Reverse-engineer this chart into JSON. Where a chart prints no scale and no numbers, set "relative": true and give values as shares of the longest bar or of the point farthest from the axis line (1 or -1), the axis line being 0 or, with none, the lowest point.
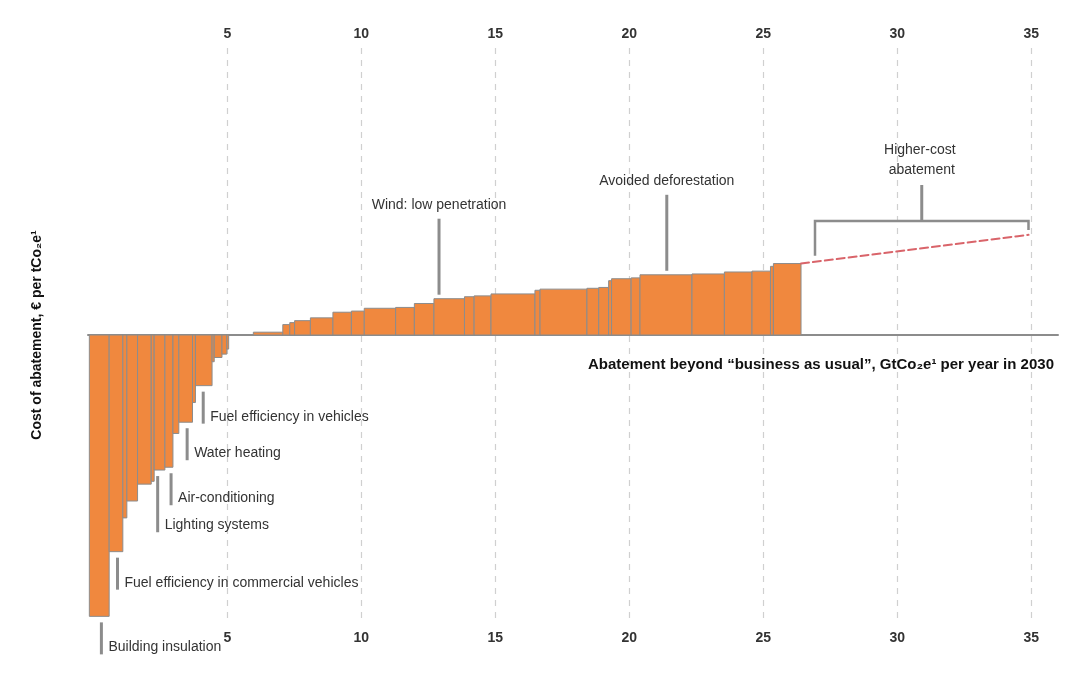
{
  "chart_data": {
    "type": "histogram",
    "relative": true,
    "ylabel": "Cost of abatement, € per tCo₂e¹",
    "xlabel": "Abatement beyond “business as usual”, GtCo₂e¹ per year in 2030",
    "bins": [
      -0.15,
      0.59,
      1.1,
      1.25,
      1.65,
      2.16,
      2.27,
      2.67,
      2.97,
      3.19,
      3.7,
      3.81,
      4.43,
      4.51,
      4.8,
      4.98,
      5.05,
      5.97,
      7.07,
      7.33,
      7.51,
      8.1,
      8.94,
      9.63,
      10.11,
      11.28,
      11.98,
      12.71,
      13.85,
      14.21,
      14.84,
      16.48,
      16.67,
      18.42,
      18.86,
      19.23,
      19.34,
      20.07,
      20.4,
      22.34,
      23.55,
      24.58,
      25.27,
      25.38,
      26.41
    ],
    "series": [
      {
        "color": "#f0883e",
        "values": [
          -1.0,
          -0.77,
          -0.65,
          -0.59,
          -0.53,
          -0.52,
          -0.48,
          -0.47,
          -0.35,
          -0.31,
          -0.24,
          -0.18,
          -0.095,
          -0.08,
          -0.068,
          -0.05,
          0,
          0.01,
          0.037,
          0.044,
          0.051,
          0.061,
          0.081,
          0.085,
          0.095,
          0.098,
          0.112,
          0.129,
          0.136,
          0.139,
          0.146,
          0.159,
          0.163,
          0.166,
          0.169,
          0.193,
          0.2,
          0.203,
          0.214,
          0.217,
          0.224,
          0.227,
          0.244,
          0.254
        ]
      },
      {
        "type": "line",
        "color": "#d9646a",
        "line_style": "dashed",
        "x": [
          26.41,
          34.9
        ],
        "values": [
          0.254,
          0.356
        ]
      }
    ],
    "xlim": [
      -0.2,
      36
    ],
    "xticks": [
      5,
      10,
      15,
      20,
      25,
      30,
      35
    ],
    "x2lim": [
      -0.2,
      36
    ],
    "x2ticks": [
      5,
      10,
      15,
      20,
      25,
      30,
      35
    ],
    "tick_labels": "x",
    "grid": "x",
    "marker": "none",
    "annotations": [
      {
        "text": "Wind: low penetration",
        "x": 12.9,
        "y": 0.129
      },
      {
        "text": "Avoided deforestation",
        "x": 21.4,
        "y": 0.214
      },
      "Higher-cost abatement",
      {
        "text": "Fuel efficiency in vehicles",
        "x": 4.1,
        "y": -0.18
      },
      {
        "text": "Water heating",
        "x": 3.5,
        "y": -0.31
      },
      {
        "text": "Air-conditioning",
        "x": 2.9,
        "y": -0.47
      },
      {
        "text": "Lighting systems",
        "x": 2.4,
        "y": -0.48
      },
      {
        "text": "Fuel efficiency in commercial vehicles",
        "x": 0.9,
        "y": -0.77
      },
      {
        "text": "Building insulation",
        "x": 0.3,
        "y": -1.0
      }
    ]
  }
}
